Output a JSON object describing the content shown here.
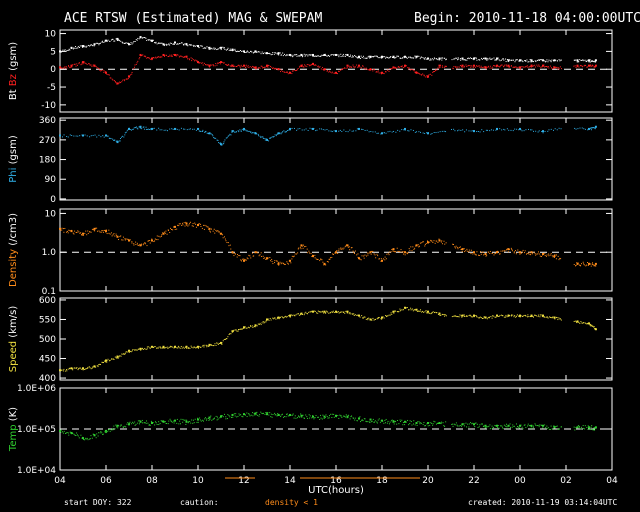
{
  "header": {
    "title": "ACE RTSW (Estimated) MAG & SWEPAM",
    "begin": "Begin: 2010-11-18 04:00:00UTC"
  },
  "footer": {
    "start_doy": "start DOY: 322",
    "caution": "caution:",
    "density_note": "density < 1",
    "created": "created: 2010-11-19 03:14:04UTC"
  },
  "colors": {
    "background": "#000000",
    "axes": "#ffffff",
    "bt": "#ffffff",
    "bz": "#ff2020",
    "phi": "#2fb0e8",
    "density": "#ff8c1a",
    "speed": "#f0e040",
    "temp": "#30d030"
  },
  "chart_data": {
    "type": "scatter",
    "xlabel": "UTC(hours)",
    "x_ticks": [
      "04",
      "06",
      "08",
      "10",
      "12",
      "14",
      "16",
      "18",
      "20",
      "22",
      "00",
      "02",
      "04"
    ],
    "xlim_hours": [
      0,
      24
    ],
    "panels": [
      {
        "id": "mag",
        "ylabel_parts": [
          {
            "text": "Bt",
            "color": "#ffffff"
          },
          {
            "text": " ",
            "color": "#ffffff"
          },
          {
            "text": "Bz",
            "color": "#ff2020"
          },
          {
            "text": " (gsm)",
            "color": "#ffffff"
          }
        ],
        "scale": "linear",
        "ylim": [
          -12,
          11
        ],
        "yticks": [
          "10",
          "5",
          "0",
          "-5",
          "-10"
        ],
        "ytick_values": [
          10,
          5,
          0,
          -5,
          -10
        ],
        "refline": 0,
        "series": [
          {
            "name": "Bt",
            "color": "#ffffff",
            "x": [
              0,
              0.5,
              1,
              1.5,
              2,
              2.5,
              3,
              3.5,
              4,
              4.5,
              5,
              5.5,
              6,
              6.5,
              7,
              7.5,
              8,
              8.5,
              9,
              9.5,
              10,
              10.5,
              11,
              11.5,
              12,
              12.5,
              13,
              13.5,
              14,
              14.5,
              15,
              15.5,
              16,
              16.5,
              17,
              17.5,
              18,
              18.5,
              19,
              19.5,
              20,
              20.5,
              21,
              21.5,
              22,
              22.5,
              23,
              23.3
            ],
            "y": [
              5,
              6,
              6.5,
              7,
              8,
              8.5,
              7,
              9,
              8,
              7,
              7.5,
              7,
              6.5,
              6,
              6,
              5.5,
              5,
              5,
              4.5,
              4.5,
              4,
              4,
              4,
              4,
              4,
              4,
              3.5,
              3.5,
              3.5,
              3.5,
              3.5,
              3.5,
              3,
              3,
              3,
              3,
              3,
              3,
              3,
              2.5,
              2.5,
              2.5,
              2.5,
              2.5,
              2.5,
              2.5,
              2.5,
              2.5
            ],
            "gaps_hours": [
              [
                16.8,
                17.0
              ],
              [
                21.8,
                22.3
              ]
            ]
          },
          {
            "name": "Bz",
            "color": "#ff2020",
            "x": [
              0,
              0.5,
              1,
              1.5,
              2,
              2.5,
              3,
              3.5,
              4,
              4.5,
              5,
              5.5,
              6,
              6.5,
              7,
              7.5,
              8,
              8.5,
              9,
              9.5,
              10,
              10.5,
              11,
              11.5,
              12,
              12.5,
              13,
              13.5,
              14,
              14.5,
              15,
              15.5,
              16,
              16.5,
              17,
              17.5,
              18,
              18.5,
              19,
              19.5,
              20,
              20.5,
              21,
              21.5,
              22,
              22.5,
              23,
              23.3
            ],
            "y": [
              0.5,
              1,
              2,
              1,
              -1,
              -4,
              -2,
              4,
              3,
              4,
              4,
              3.5,
              2,
              1,
              2,
              1,
              1,
              0.5,
              1,
              0,
              -1,
              1,
              1.5,
              0,
              -1,
              1,
              1,
              0,
              -1,
              0.5,
              1,
              -1,
              -2,
              1,
              0.5,
              1,
              1,
              0.5,
              1,
              1,
              0.5,
              1,
              1,
              0.5,
              0.5,
              1,
              1,
              1
            ],
            "gaps_hours": [
              [
                16.8,
                17.0
              ],
              [
                21.8,
                22.3
              ]
            ]
          }
        ]
      },
      {
        "id": "phi",
        "ylabel_parts": [
          {
            "text": "Phi",
            "color": "#2fb0e8"
          },
          {
            "text": " (gsm)",
            "color": "#ffffff"
          }
        ],
        "scale": "linear",
        "ylim": [
          -5,
          370
        ],
        "yticks": [
          "360",
          "270",
          "180",
          "90",
          "0"
        ],
        "ytick_values": [
          360,
          270,
          180,
          90,
          0
        ],
        "series": [
          {
            "name": "Phi",
            "color": "#2fb0e8",
            "x": [
              0,
              1,
              2,
              2.5,
              3,
              3.5,
              4,
              5,
              6,
              6.5,
              7,
              7.5,
              8,
              8.5,
              9,
              9.5,
              10,
              11,
              12,
              13,
              14,
              15,
              16,
              17,
              18,
              19,
              20,
              21,
              22,
              23,
              23.3
            ],
            "y": [
              290,
              290,
              290,
              260,
              320,
              330,
              320,
              320,
              320,
              300,
              250,
              310,
              320,
              300,
              270,
              300,
              320,
              320,
              310,
              320,
              300,
              320,
              300,
              320,
              310,
              320,
              320,
              310,
              330,
              320,
              330
            ],
            "gaps_hours": [
              [
                16.8,
                17.0
              ],
              [
                21.8,
                22.3
              ]
            ]
          }
        ]
      },
      {
        "id": "density",
        "ylabel_parts": [
          {
            "text": "Density",
            "color": "#ff8c1a"
          },
          {
            "text": " (/cm3)",
            "color": "#ffffff"
          }
        ],
        "scale": "log",
        "ylim": [
          0.1,
          13
        ],
        "yticks": [
          "10",
          "1.0",
          "0.1"
        ],
        "ytick_values": [
          10,
          1,
          0.1
        ],
        "refline": 1,
        "series": [
          {
            "name": "Density",
            "color": "#ff8c1a",
            "x": [
              0,
              0.5,
              1,
              1.5,
              2,
              2.5,
              3,
              3.5,
              4,
              4.5,
              5,
              5.5,
              6,
              6.5,
              7,
              7.5,
              8,
              8.5,
              9,
              9.5,
              10,
              10.5,
              11,
              11.5,
              12,
              12.5,
              13,
              13.5,
              14,
              14.5,
              15,
              15.5,
              16,
              16.5,
              17,
              17.5,
              18,
              18.5,
              19,
              19.5,
              20,
              20.5,
              21,
              21.5,
              22,
              22.5,
              23,
              23.3
            ],
            "y": [
              4,
              3.5,
              3,
              4,
              3.5,
              2.5,
              2,
              1.5,
              2,
              3,
              4.5,
              5.5,
              5,
              4,
              3,
              1,
              0.6,
              1,
              0.7,
              0.5,
              0.6,
              1.5,
              0.8,
              0.5,
              1,
              1.5,
              0.7,
              1,
              0.6,
              1.2,
              1,
              1.5,
              1.8,
              2,
              1.5,
              1.2,
              1,
              0.9,
              1,
              1.2,
              1,
              1,
              0.9,
              0.8,
              0.6,
              0.5,
              0.5,
              0.5
            ],
            "gaps_hours": [
              [
                16.8,
                17.0
              ],
              [
                21.8,
                22.3
              ]
            ]
          }
        ]
      },
      {
        "id": "speed",
        "ylabel_parts": [
          {
            "text": "Speed",
            "color": "#f0e040"
          },
          {
            "text": " (km/s)",
            "color": "#ffffff"
          }
        ],
        "scale": "linear",
        "ylim": [
          395,
          605
        ],
        "yticks": [
          "600",
          "550",
          "500",
          "450",
          "400"
        ],
        "ytick_values": [
          600,
          550,
          500,
          450,
          400
        ],
        "series": [
          {
            "name": "Speed",
            "color": "#f0e040",
            "x": [
              0,
              0.5,
              1,
              1.5,
              2,
              2.5,
              3,
              3.5,
              4,
              4.5,
              5,
              5.5,
              6,
              6.5,
              7,
              7.5,
              8,
              8.5,
              9,
              9.5,
              10,
              10.5,
              11,
              11.5,
              12,
              12.5,
              13,
              13.5,
              14,
              14.5,
              15,
              15.5,
              16,
              16.5,
              17,
              17.5,
              18,
              18.5,
              19,
              19.5,
              20,
              20.5,
              21,
              21.5,
              22,
              22.5,
              23,
              23.3
            ],
            "y": [
              420,
              425,
              425,
              430,
              445,
              455,
              470,
              475,
              480,
              480,
              480,
              480,
              480,
              485,
              490,
              520,
              530,
              535,
              550,
              555,
              560,
              565,
              570,
              570,
              570,
              570,
              560,
              550,
              555,
              570,
              580,
              575,
              570,
              565,
              560,
              560,
              560,
              555,
              560,
              560,
              560,
              560,
              560,
              555,
              550,
              545,
              540,
              525
            ],
            "gaps_hours": [
              [
                16.8,
                17.0
              ],
              [
                21.8,
                22.3
              ]
            ]
          }
        ]
      },
      {
        "id": "temp",
        "ylabel_parts": [
          {
            "text": "Temp",
            "color": "#30d030"
          },
          {
            "text": " (K)",
            "color": "#ffffff"
          }
        ],
        "scale": "log",
        "ylim": [
          10000,
          1000000
        ],
        "yticks": [
          "1.0E+06",
          "1.0E+05",
          "1.0E+04"
        ],
        "ytick_values": [
          1000000,
          100000,
          10000
        ],
        "refline": 100000,
        "series": [
          {
            "name": "Temp",
            "color": "#30d030",
            "x": [
              0,
              0.5,
              1,
              1.5,
              2,
              2.5,
              3,
              3.5,
              4,
              4.5,
              5,
              5.5,
              6,
              6.5,
              7,
              7.5,
              8,
              8.5,
              9,
              9.5,
              10,
              10.5,
              11,
              11.5,
              12,
              12.5,
              13,
              13.5,
              14,
              14.5,
              15,
              15.5,
              16,
              16.5,
              17,
              17.5,
              18,
              18.5,
              19,
              19.5,
              20,
              20.5,
              21,
              21.5,
              22,
              22.5,
              23,
              23.3
            ],
            "y": [
              90000,
              80000,
              60000,
              70000,
              90000,
              120000,
              130000,
              150000,
              140000,
              150000,
              160000,
              150000,
              170000,
              190000,
              200000,
              220000,
              230000,
              240000,
              230000,
              220000,
              220000,
              210000,
              200000,
              200000,
              210000,
              200000,
              180000,
              170000,
              160000,
              150000,
              150000,
              140000,
              140000,
              140000,
              130000,
              130000,
              130000,
              120000,
              120000,
              120000,
              120000,
              120000,
              120000,
              110000,
              110000,
              110000,
              110000,
              110000
            ],
            "gaps_hours": [
              [
                16.8,
                17.0
              ],
              [
                21.8,
                22.3
              ]
            ]
          }
        ]
      }
    ]
  }
}
